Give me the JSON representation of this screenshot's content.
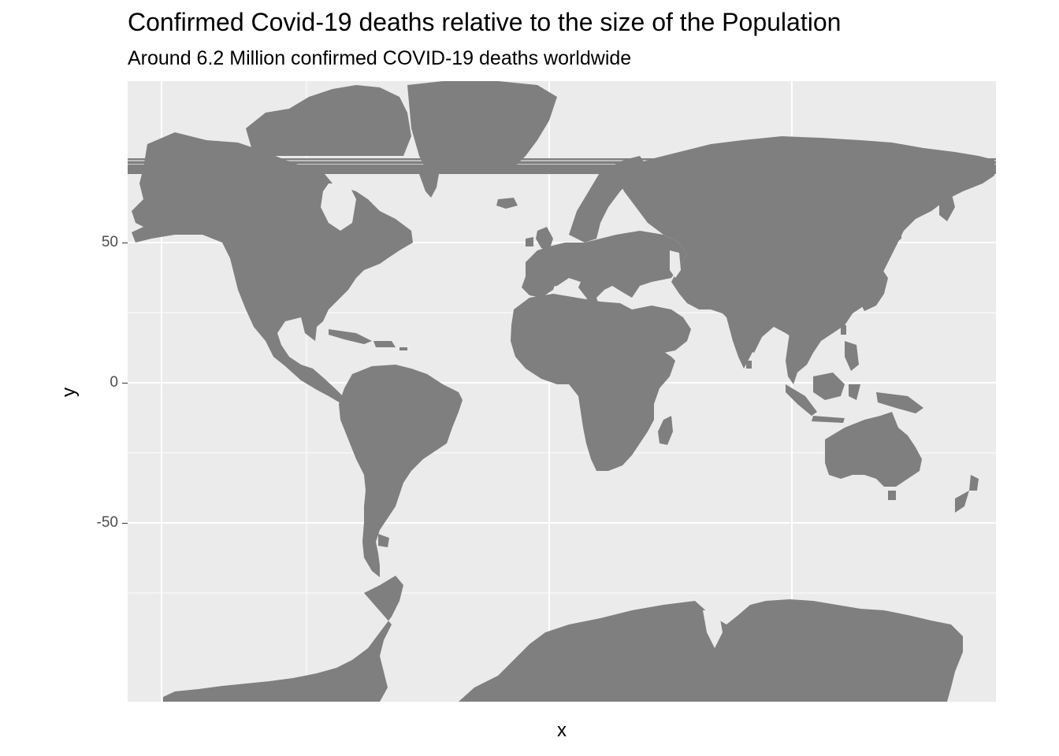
{
  "title": "Confirmed Covid-19 deaths relative to the size of the Population",
  "subtitle": "Around 6.2 Million confirmed COVID-19 deaths worldwide",
  "axes": {
    "x_label": "x",
    "y_label": "y",
    "y_ticks": [
      "50",
      "0",
      "-50"
    ]
  },
  "map": {
    "type": "world land polygons",
    "projection": "mercator-like",
    "land_color": "#7f7f7f",
    "panel_color": "#ebebeb",
    "grid_color": "#ffffff",
    "regions": [
      "north-america",
      "greenland",
      "central-america",
      "caribbean",
      "south-america",
      "europe",
      "africa",
      "middle-east",
      "asia",
      "japan",
      "southeast-asia-islands",
      "australia",
      "new-zealand",
      "antarctica"
    ]
  },
  "chart_data": {
    "type": "map",
    "title": "Confirmed Covid-19 deaths relative to the size of the Population",
    "subtitle": "Around 6.2 Million confirmed COVID-19 deaths worldwide",
    "xlabel": "x",
    "ylabel": "y",
    "y_ticks": [
      50,
      0,
      -50
    ],
    "grid": true
  }
}
